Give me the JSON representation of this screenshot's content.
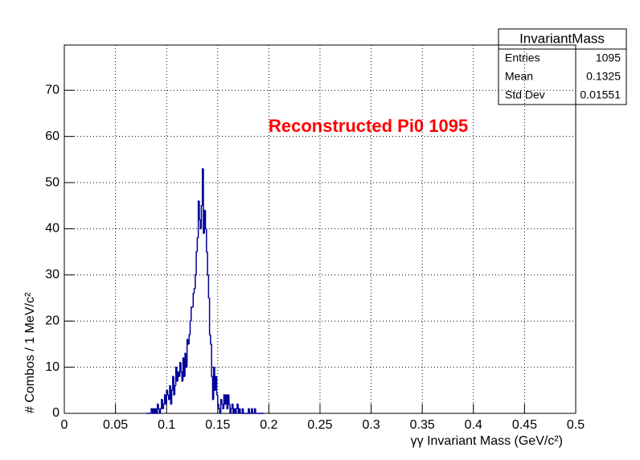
{
  "chart_data": {
    "type": "histogram",
    "x_label": "γγ Invariant Mass (GeV/c²)",
    "y_label": "# Combos / 1 MeV/c²",
    "annotation": "Reconstructed Pi0 1095",
    "color": "#000099",
    "annotation_color": "#ff0000",
    "grid": true,
    "xlim": [
      0,
      0.5
    ],
    "ylim": [
      0,
      79.8
    ],
    "xticks": [
      0,
      0.05,
      0.1,
      0.15,
      0.2,
      0.25,
      0.3,
      0.35,
      0.4,
      0.45,
      0.5
    ],
    "yticks": [
      0,
      10,
      20,
      30,
      40,
      50,
      60,
      70
    ],
    "bins": [
      0.08,
      0.081,
      0.082,
      0.083,
      0.084,
      0.085,
      0.086,
      0.087,
      0.088,
      0.089,
      0.09,
      0.091,
      0.092,
      0.093,
      0.094,
      0.095,
      0.096,
      0.097,
      0.098,
      0.099,
      0.1,
      0.101,
      0.102,
      0.103,
      0.104,
      0.105,
      0.106,
      0.107,
      0.108,
      0.109,
      0.11,
      0.111,
      0.112,
      0.113,
      0.114,
      0.115,
      0.116,
      0.117,
      0.118,
      0.119,
      0.12,
      0.121,
      0.122,
      0.123,
      0.124,
      0.125,
      0.126,
      0.127,
      0.128,
      0.129,
      0.13,
      0.131,
      0.132,
      0.133,
      0.134,
      0.135,
      0.136,
      0.137,
      0.138,
      0.139,
      0.14,
      0.141,
      0.142,
      0.143,
      0.144,
      0.145,
      0.146,
      0.147,
      0.148,
      0.149,
      0.15,
      0.151,
      0.152,
      0.153,
      0.154,
      0.155,
      0.156,
      0.157,
      0.158,
      0.159,
      0.16,
      0.161,
      0.162,
      0.163,
      0.164,
      0.165,
      0.166,
      0.167,
      0.168,
      0.169,
      0.17,
      0.171,
      0.172,
      0.173,
      0.174,
      0.175,
      0.176,
      0.177,
      0.178,
      0.179,
      0.18,
      0.181,
      0.182,
      0.183,
      0.184,
      0.185,
      0.186,
      0.187,
      0.188,
      0.189,
      0.19,
      0.191,
      0.192,
      0.193,
      0.194,
      0.195
    ],
    "values": [
      0,
      0,
      0,
      0,
      0,
      1,
      0,
      1,
      0,
      1,
      0,
      2,
      1,
      0,
      1,
      3,
      1,
      2,
      4,
      2,
      5,
      4,
      3,
      6,
      2,
      5,
      8,
      4,
      6,
      10,
      7,
      9,
      8,
      11,
      9,
      7,
      12,
      8,
      13,
      10,
      16,
      15,
      17,
      20,
      23,
      23,
      26,
      27,
      30,
      35,
      38,
      46,
      42,
      40,
      45,
      53,
      39,
      44,
      40,
      35,
      30,
      25,
      17,
      15,
      8,
      3,
      10,
      5,
      8,
      4,
      2,
      1,
      0,
      3,
      2,
      1,
      4,
      2,
      4,
      1,
      4,
      2,
      0,
      1,
      2,
      0,
      1,
      0,
      1,
      2,
      0,
      1,
      0,
      0,
      1,
      0,
      0,
      0,
      0,
      0,
      1,
      0,
      0,
      1,
      0,
      0,
      1,
      0,
      0,
      0,
      0,
      0,
      0,
      0,
      0
    ],
    "stats": {
      "title": "InvariantMass",
      "rows": [
        [
          "Entries",
          "1095"
        ],
        [
          "Mean",
          "0.1325"
        ],
        [
          "Std Dev",
          "0.01551"
        ]
      ]
    }
  }
}
